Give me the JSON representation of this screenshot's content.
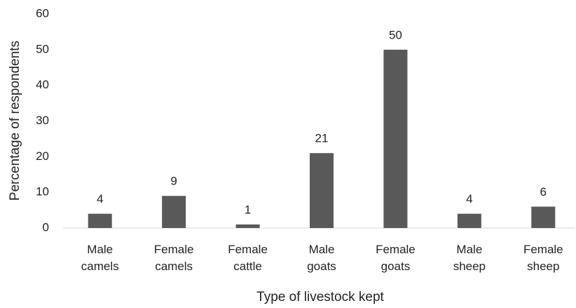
{
  "chart_data": {
    "type": "bar",
    "x_label": "Type of livestock kept",
    "y_label": "Percentage of respondents",
    "categories": [
      "Male camels",
      "Female camels",
      "Female cattle",
      "Male goats",
      "Female goats",
      "Male sheep",
      "Female sheep"
    ],
    "values": [
      4,
      9,
      1,
      21,
      50,
      4,
      6
    ],
    "color": "#595959",
    "ylim": [
      0,
      60
    ],
    "yticks": [
      0,
      10,
      20,
      30,
      40,
      50,
      60
    ],
    "grid": false
  }
}
